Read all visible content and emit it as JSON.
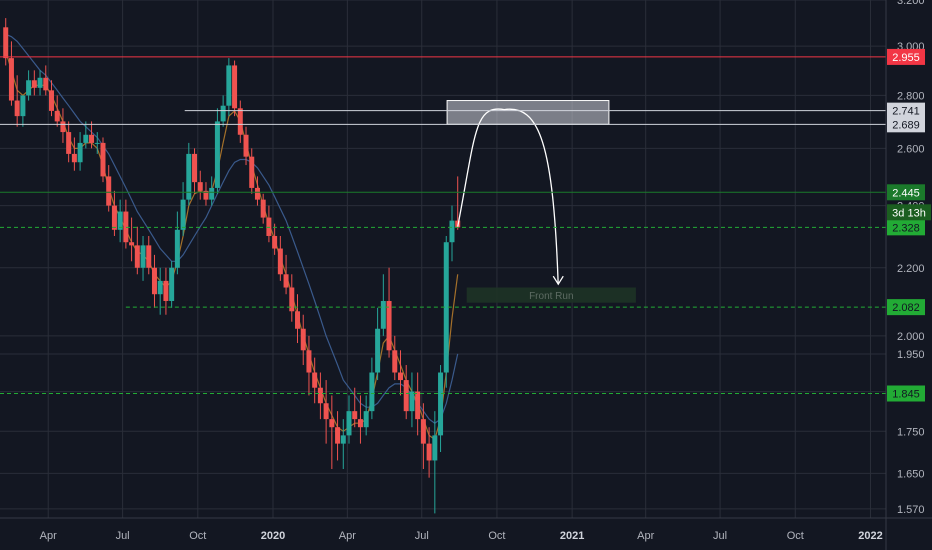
{
  "chart_data": {
    "type": "candlestick",
    "title": "",
    "xlabel": "",
    "ylabel": "",
    "y_axis": {
      "scale": "log",
      "ylim": [
        1.55,
        3.2
      ],
      "ticks": [
        "3.200",
        "3.000",
        "2.800",
        "2.600",
        "2.400",
        "2.200",
        "2.000",
        "1.950",
        "1.850",
        "1.750",
        "1.650",
        "1.570"
      ],
      "position": "right"
    },
    "x_axis": {
      "range": [
        "2019-02-01",
        "2022-01-20"
      ],
      "ticks": [
        {
          "label": "Apr",
          "date": "2019-04-01"
        },
        {
          "label": "Jul",
          "date": "2019-07-01"
        },
        {
          "label": "Oct",
          "date": "2019-10-01"
        },
        {
          "label": "2020",
          "date": "2020-01-01",
          "bold": true
        },
        {
          "label": "Apr",
          "date": "2020-04-01"
        },
        {
          "label": "Jul",
          "date": "2020-07-01"
        },
        {
          "label": "Oct",
          "date": "2020-10-01"
        },
        {
          "label": "2021",
          "date": "2021-01-01",
          "bold": true
        },
        {
          "label": "Apr",
          "date": "2021-04-01"
        },
        {
          "label": "Jul",
          "date": "2021-07-01"
        },
        {
          "label": "Oct",
          "date": "2021-10-01"
        },
        {
          "label": "2022",
          "date": "2022-01-01",
          "bold": true
        }
      ]
    },
    "grid": true,
    "legend": "none",
    "colors": {
      "background": "#131722",
      "up": "#26a69a",
      "down": "#ef5350",
      "grid": "#2a2e39",
      "ma_fast": "#a4702a",
      "ma_slow": "#3a5a8c"
    },
    "series": [
      {
        "dates": [
          "2019-02-08",
          "2019-02-15",
          "2019-02-22",
          "2019-03-01",
          "2019-03-08",
          "2019-03-15",
          "2019-03-22",
          "2019-03-29",
          "2019-04-05",
          "2019-04-12",
          "2019-04-19",
          "2019-04-26",
          "2019-05-03",
          "2019-05-10",
          "2019-05-17",
          "2019-05-24",
          "2019-05-31",
          "2019-06-07",
          "2019-06-14",
          "2019-06-21",
          "2019-06-28",
          "2019-07-05",
          "2019-07-12",
          "2019-07-19",
          "2019-07-26",
          "2019-08-02",
          "2019-08-09",
          "2019-08-16",
          "2019-08-23",
          "2019-08-30",
          "2019-09-06",
          "2019-09-13",
          "2019-09-20",
          "2019-09-27",
          "2019-10-04",
          "2019-10-11",
          "2019-10-18",
          "2019-10-25",
          "2019-11-01",
          "2019-11-08",
          "2019-11-15",
          "2019-11-22",
          "2019-11-29",
          "2019-12-06",
          "2019-12-13",
          "2019-12-20",
          "2019-12-27",
          "2020-01-03",
          "2020-01-10",
          "2020-01-17",
          "2020-01-24",
          "2020-01-31",
          "2020-02-07",
          "2020-02-14",
          "2020-02-21",
          "2020-02-28",
          "2020-03-06",
          "2020-03-13",
          "2020-03-20",
          "2020-03-27",
          "2020-04-03",
          "2020-04-10",
          "2020-04-17",
          "2020-04-24",
          "2020-05-01",
          "2020-05-08",
          "2020-05-15",
          "2020-05-22",
          "2020-05-29",
          "2020-06-05",
          "2020-06-12",
          "2020-06-19",
          "2020-06-26",
          "2020-07-03",
          "2020-07-10",
          "2020-07-17",
          "2020-07-24",
          "2020-07-31",
          "2020-08-07",
          "2020-08-14"
        ],
        "open": [
          3.08,
          2.95,
          2.78,
          2.72,
          2.8,
          2.86,
          2.83,
          2.87,
          2.82,
          2.74,
          2.7,
          2.66,
          2.58,
          2.55,
          2.62,
          2.65,
          2.62,
          2.62,
          2.5,
          2.4,
          2.32,
          2.38,
          2.28,
          2.27,
          2.2,
          2.27,
          2.2,
          2.12,
          2.16,
          2.1,
          2.2,
          2.32,
          2.42,
          2.58,
          2.48,
          2.45,
          2.42,
          2.46,
          2.7,
          2.76,
          2.92,
          2.75,
          2.65,
          2.57,
          2.46,
          2.42,
          2.36,
          2.3,
          2.26,
          2.18,
          2.14,
          2.07,
          2.02,
          1.96,
          1.9,
          1.86,
          1.82,
          1.78,
          1.76,
          1.72,
          1.74,
          1.8,
          1.78,
          1.76,
          1.8,
          1.9,
          2.02,
          2.1,
          1.96,
          1.9,
          1.88,
          1.8,
          1.85,
          1.78,
          1.72,
          1.68,
          1.74,
          1.9,
          2.28,
          2.35
        ],
        "high": [
          3.12,
          3.02,
          2.88,
          2.8,
          2.9,
          2.9,
          2.9,
          2.92,
          2.86,
          2.8,
          2.75,
          2.7,
          2.64,
          2.66,
          2.7,
          2.7,
          2.66,
          2.64,
          2.54,
          2.45,
          2.42,
          2.42,
          2.36,
          2.33,
          2.3,
          2.3,
          2.24,
          2.2,
          2.2,
          2.22,
          2.38,
          2.48,
          2.62,
          2.6,
          2.52,
          2.48,
          2.5,
          2.75,
          2.8,
          2.95,
          2.94,
          2.78,
          2.68,
          2.6,
          2.5,
          2.44,
          2.4,
          2.34,
          2.3,
          2.24,
          2.18,
          2.12,
          2.06,
          2.0,
          1.94,
          1.9,
          1.88,
          1.84,
          1.8,
          1.78,
          1.84,
          1.86,
          1.84,
          1.84,
          1.94,
          2.08,
          2.18,
          2.2,
          2.0,
          1.96,
          1.92,
          1.9,
          1.9,
          1.82,
          1.76,
          1.8,
          1.92,
          2.3,
          2.4,
          2.5
        ],
        "low": [
          2.92,
          2.76,
          2.68,
          2.68,
          2.78,
          2.8,
          2.8,
          2.8,
          2.72,
          2.68,
          2.62,
          2.55,
          2.52,
          2.52,
          2.6,
          2.6,
          2.58,
          2.48,
          2.38,
          2.3,
          2.28,
          2.26,
          2.22,
          2.18,
          2.16,
          2.18,
          2.08,
          2.06,
          2.06,
          2.08,
          2.18,
          2.3,
          2.4,
          2.44,
          2.42,
          2.4,
          2.4,
          2.44,
          2.68,
          2.72,
          2.72,
          2.62,
          2.54,
          2.44,
          2.4,
          2.34,
          2.28,
          2.24,
          2.16,
          2.12,
          2.04,
          1.98,
          1.92,
          1.84,
          1.82,
          1.78,
          1.72,
          1.66,
          1.68,
          1.66,
          1.72,
          1.76,
          1.72,
          1.74,
          1.78,
          1.88,
          2.0,
          1.94,
          1.88,
          1.84,
          1.78,
          1.76,
          1.74,
          1.66,
          1.64,
          1.56,
          1.7,
          1.86,
          2.22,
          2.32
        ],
        "close": [
          2.95,
          2.78,
          2.72,
          2.8,
          2.86,
          2.83,
          2.87,
          2.82,
          2.74,
          2.7,
          2.66,
          2.58,
          2.55,
          2.62,
          2.65,
          2.62,
          2.62,
          2.5,
          2.4,
          2.32,
          2.38,
          2.28,
          2.27,
          2.2,
          2.27,
          2.2,
          2.12,
          2.16,
          2.1,
          2.2,
          2.32,
          2.42,
          2.58,
          2.48,
          2.45,
          2.42,
          2.46,
          2.7,
          2.76,
          2.92,
          2.75,
          2.65,
          2.57,
          2.46,
          2.42,
          2.36,
          2.3,
          2.26,
          2.18,
          2.14,
          2.07,
          2.02,
          1.96,
          1.9,
          1.86,
          1.82,
          1.78,
          1.76,
          1.72,
          1.74,
          1.8,
          1.78,
          1.76,
          1.8,
          1.9,
          2.02,
          2.1,
          1.96,
          1.9,
          1.88,
          1.8,
          1.85,
          1.78,
          1.72,
          1.68,
          1.74,
          1.9,
          2.28,
          2.35,
          2.328
        ]
      }
    ],
    "ma_fast": [
      2.98,
      2.9,
      2.82,
      2.8,
      2.82,
      2.84,
      2.84,
      2.84,
      2.8,
      2.75,
      2.7,
      2.64,
      2.6,
      2.6,
      2.62,
      2.62,
      2.6,
      2.54,
      2.46,
      2.4,
      2.36,
      2.32,
      2.28,
      2.25,
      2.24,
      2.22,
      2.18,
      2.16,
      2.14,
      2.16,
      2.22,
      2.3,
      2.4,
      2.44,
      2.45,
      2.44,
      2.45,
      2.52,
      2.62,
      2.72,
      2.74,
      2.7,
      2.62,
      2.54,
      2.47,
      2.4,
      2.34,
      2.29,
      2.23,
      2.18,
      2.12,
      2.06,
      2.0,
      1.95,
      1.9,
      1.86,
      1.82,
      1.79,
      1.76,
      1.75,
      1.76,
      1.77,
      1.77,
      1.78,
      1.83,
      1.9,
      1.98,
      2.0,
      1.96,
      1.92,
      1.88,
      1.85,
      1.82,
      1.78,
      1.74,
      1.73,
      1.78,
      1.9,
      2.05,
      2.18
    ],
    "ma_slow": [
      3.05,
      3.04,
      3.02,
      2.99,
      2.96,
      2.93,
      2.9,
      2.88,
      2.85,
      2.82,
      2.79,
      2.76,
      2.73,
      2.7,
      2.68,
      2.66,
      2.64,
      2.61,
      2.58,
      2.54,
      2.5,
      2.46,
      2.42,
      2.38,
      2.35,
      2.32,
      2.29,
      2.26,
      2.24,
      2.22,
      2.22,
      2.24,
      2.27,
      2.3,
      2.33,
      2.36,
      2.4,
      2.44,
      2.48,
      2.52,
      2.55,
      2.56,
      2.56,
      2.55,
      2.53,
      2.5,
      2.47,
      2.43,
      2.39,
      2.35,
      2.3,
      2.25,
      2.2,
      2.15,
      2.1,
      2.05,
      2.0,
      1.96,
      1.92,
      1.88,
      1.86,
      1.84,
      1.82,
      1.81,
      1.81,
      1.82,
      1.84,
      1.86,
      1.87,
      1.87,
      1.86,
      1.84,
      1.82,
      1.8,
      1.78,
      1.77,
      1.78,
      1.82,
      1.88,
      1.95
    ],
    "price_lines": [
      {
        "value": 2.955,
        "label": "2.955",
        "color": "#f23645",
        "style": "solid",
        "text_color": "#ffffff",
        "from": "2019-02-01"
      },
      {
        "value": 2.741,
        "label": "2.741",
        "color": "#d1d4dc",
        "style": "solid",
        "text_color": "#131722",
        "from": "2019-09-15"
      },
      {
        "value": 2.689,
        "label": "2.689",
        "color": "#d1d4dc",
        "style": "solid",
        "text_color": "#131722",
        "from": "2019-02-01"
      },
      {
        "value": 2.445,
        "label": "2.445",
        "color": "#1b7a2b",
        "style": "solid",
        "text_color": "#ffffff",
        "from": "2019-02-01"
      },
      {
        "value": 2.328,
        "label": "2.328",
        "color": "#22ab35",
        "style": "dashed",
        "text_color": "#131722",
        "from": "2019-02-01"
      },
      {
        "value": 2.082,
        "label": "2.082",
        "color": "#22ab35",
        "style": "dashed",
        "text_color": "#131722",
        "from": "2019-07-05"
      },
      {
        "value": 1.845,
        "label": "1.845",
        "color": "#22ab35",
        "style": "dashed",
        "text_color": "#131722",
        "from": "2019-02-01"
      }
    ],
    "countdown_label": "3d 13h",
    "annotations": [
      {
        "type": "box",
        "from": "2020-08-01",
        "to": "2021-02-15",
        "y_low": 2.689,
        "y_high": 2.78,
        "color": "#d1d4dc"
      },
      {
        "type": "box",
        "text": "Front Run",
        "from": "2020-08-25",
        "to": "2021-03-20",
        "y_low": 2.095,
        "y_high": 2.14,
        "color": "#1e3326"
      },
      {
        "type": "arrow_path",
        "points": [
          [
            "2020-08-14",
            2.33
          ],
          [
            "2020-09-10",
            2.62
          ],
          [
            "2020-10-10",
            2.745
          ],
          [
            "2020-11-10",
            2.62
          ],
          [
            "2020-12-15",
            2.15
          ]
        ],
        "color": "#ffffff"
      }
    ]
  }
}
